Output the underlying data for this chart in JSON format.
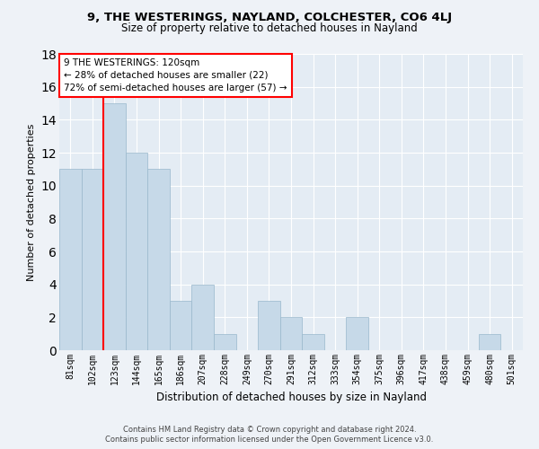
{
  "title1": "9, THE WESTERINGS, NAYLAND, COLCHESTER, CO6 4LJ",
  "title2": "Size of property relative to detached houses in Nayland",
  "xlabel": "Distribution of detached houses by size in Nayland",
  "ylabel": "Number of detached properties",
  "categories": [
    "81sqm",
    "102sqm",
    "123sqm",
    "144sqm",
    "165sqm",
    "186sqm",
    "207sqm",
    "228sqm",
    "249sqm",
    "270sqm",
    "291sqm",
    "312sqm",
    "333sqm",
    "354sqm",
    "375sqm",
    "396sqm",
    "417sqm",
    "438sqm",
    "459sqm",
    "480sqm",
    "501sqm"
  ],
  "values": [
    11,
    11,
    15,
    12,
    11,
    3,
    4,
    1,
    0,
    3,
    2,
    1,
    0,
    2,
    0,
    0,
    0,
    0,
    0,
    1,
    0
  ],
  "bar_color": "#c6d9e8",
  "bar_edgecolor": "#99b8cc",
  "red_line_x": 1.5,
  "ylim": [
    0,
    18
  ],
  "yticks": [
    0,
    2,
    4,
    6,
    8,
    10,
    12,
    14,
    16,
    18
  ],
  "annotation_lines": [
    "9 THE WESTERINGS: 120sqm",
    "← 28% of detached houses are smaller (22)",
    "72% of semi-detached houses are larger (57) →"
  ],
  "footer1": "Contains HM Land Registry data © Crown copyright and database right 2024.",
  "footer2": "Contains public sector information licensed under the Open Government Licence v3.0.",
  "bg_color": "#eef2f7",
  "plot_bg_color": "#e4ecf4"
}
